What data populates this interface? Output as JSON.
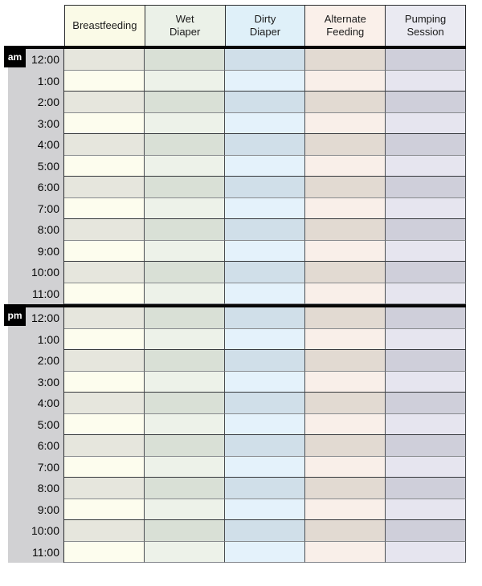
{
  "page": {
    "background": "#ffffff"
  },
  "table": {
    "columns": [
      {
        "id": "breastfeeding",
        "label": "Breastfeeding",
        "header_bg": "#fafae7",
        "row_light": "#fdfdee",
        "row_dark": "#e6e6dd"
      },
      {
        "id": "wet-diaper",
        "label": "Wet\nDiaper",
        "header_bg": "#ebf1e8",
        "row_light": "#edf2e9",
        "row_dark": "#d9e0d6"
      },
      {
        "id": "dirty-diaper",
        "label": "Dirty\nDiaper",
        "header_bg": "#dff0f9",
        "row_light": "#e4f2fb",
        "row_dark": "#d0dfe9"
      },
      {
        "id": "alternate-feeding",
        "label": "Alternate\nFeeding",
        "header_bg": "#faf0ea",
        "row_light": "#f9efe9",
        "row_dark": "#e2dad2"
      },
      {
        "id": "pumping-session",
        "label": "Pumping\nSession",
        "header_bg": "#eaeaf2",
        "row_light": "#e6e5ef",
        "row_dark": "#cfcfda"
      }
    ],
    "sections": [
      {
        "label": "am",
        "hours": [
          "12:00",
          "1:00",
          "2:00",
          "3:00",
          "4:00",
          "5:00",
          "6:00",
          "7:00",
          "8:00",
          "9:00",
          "10:00",
          "11:00"
        ]
      },
      {
        "label": "pm",
        "hours": [
          "12:00",
          "1:00",
          "2:00",
          "3:00",
          "4:00",
          "5:00",
          "6:00",
          "7:00",
          "8:00",
          "9:00",
          "10:00",
          "11:00"
        ]
      }
    ],
    "colors": {
      "time_column_bg": "#d1d1d3",
      "badge_bg": "#000000",
      "badge_text": "#ffffff",
      "divider": "#070707",
      "grid_border": "#4b4e52",
      "header_border": "#2b2d2f"
    }
  }
}
